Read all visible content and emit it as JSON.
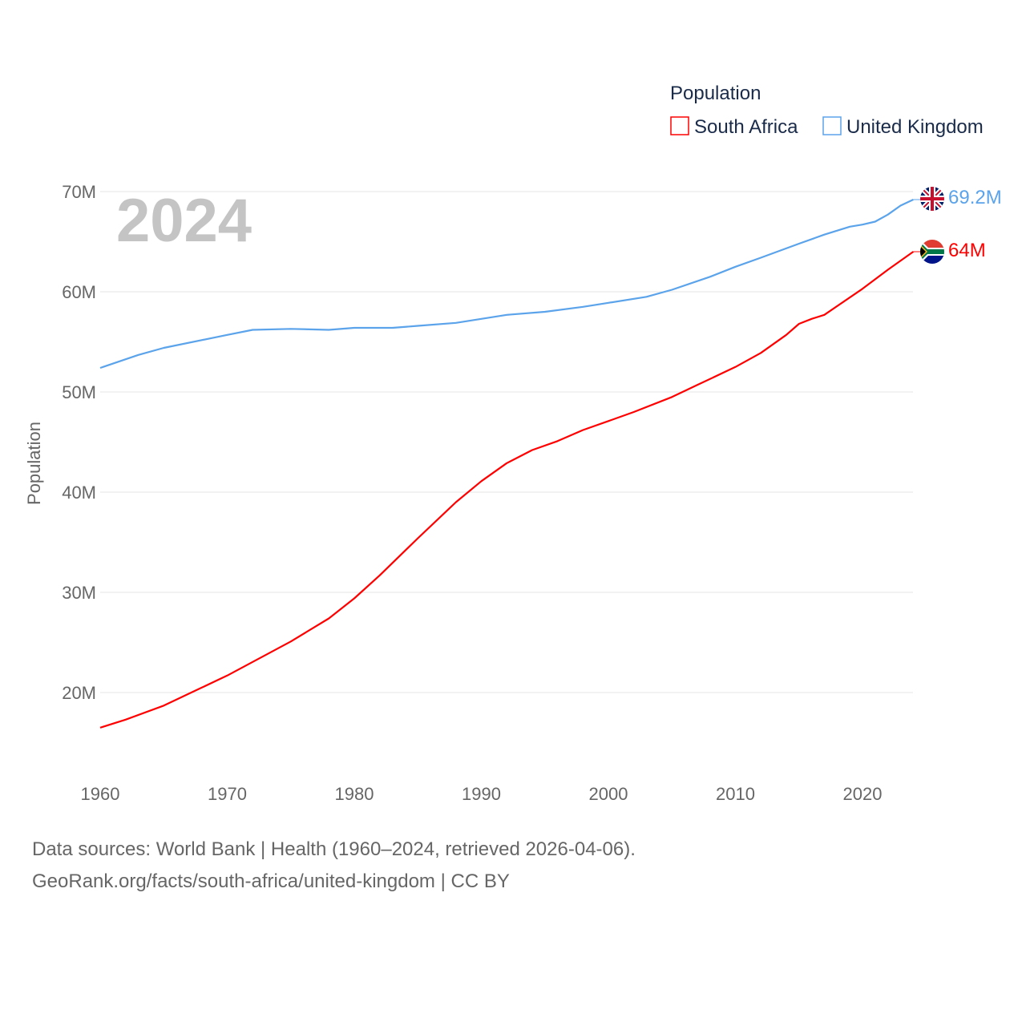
{
  "chart_data": {
    "type": "line",
    "title": "Population",
    "ylabel": "Population",
    "xlabel": "",
    "current_year_label": "2024",
    "xlim": [
      1960,
      2024
    ],
    "ylim": [
      15,
      70
    ],
    "x_ticks": [
      "1960",
      "1970",
      "1980",
      "1990",
      "2000",
      "2010",
      "2020"
    ],
    "y_ticks": [
      "20M",
      "30M",
      "40M",
      "50M",
      "60M",
      "70M"
    ],
    "grid": true,
    "legend_position": "top-right",
    "series": [
      {
        "name": "South Africa",
        "color": "#ff0000",
        "end_label": "64M",
        "flag": "south-africa-flag",
        "points": [
          [
            1960,
            16.5
          ],
          [
            1962,
            17.3
          ],
          [
            1965,
            18.7
          ],
          [
            1968,
            20.5
          ],
          [
            1970,
            21.7
          ],
          [
            1975,
            25.1
          ],
          [
            1978,
            27.4
          ],
          [
            1980,
            29.4
          ],
          [
            1982,
            31.7
          ],
          [
            1985,
            35.4
          ],
          [
            1988,
            39.0
          ],
          [
            1990,
            41.1
          ],
          [
            1992,
            42.9
          ],
          [
            1994,
            44.2
          ],
          [
            1996,
            45.1
          ],
          [
            1998,
            46.2
          ],
          [
            2000,
            47.1
          ],
          [
            2002,
            48.0
          ],
          [
            2005,
            49.5
          ],
          [
            2007,
            50.7
          ],
          [
            2010,
            52.5
          ],
          [
            2012,
            53.9
          ],
          [
            2014,
            55.7
          ],
          [
            2015,
            56.8
          ],
          [
            2016,
            57.3
          ],
          [
            2017,
            57.7
          ],
          [
            2020,
            60.3
          ],
          [
            2022,
            62.2
          ],
          [
            2024,
            64.0
          ]
        ]
      },
      {
        "name": "United Kingdom",
        "color": "#5ba3ea",
        "end_label": "69.2M",
        "flag": "united-kingdom-flag",
        "points": [
          [
            1960,
            52.4
          ],
          [
            1963,
            53.7
          ],
          [
            1965,
            54.4
          ],
          [
            1970,
            55.7
          ],
          [
            1972,
            56.2
          ],
          [
            1975,
            56.3
          ],
          [
            1978,
            56.2
          ],
          [
            1980,
            56.4
          ],
          [
            1983,
            56.4
          ],
          [
            1985,
            56.6
          ],
          [
            1988,
            56.9
          ],
          [
            1990,
            57.3
          ],
          [
            1992,
            57.7
          ],
          [
            1995,
            58.0
          ],
          [
            1998,
            58.5
          ],
          [
            2000,
            58.9
          ],
          [
            2003,
            59.5
          ],
          [
            2005,
            60.2
          ],
          [
            2008,
            61.5
          ],
          [
            2010,
            62.5
          ],
          [
            2012,
            63.4
          ],
          [
            2015,
            64.8
          ],
          [
            2017,
            65.7
          ],
          [
            2019,
            66.5
          ],
          [
            2020,
            66.7
          ],
          [
            2021,
            67.0
          ],
          [
            2022,
            67.7
          ],
          [
            2023,
            68.6
          ],
          [
            2024,
            69.2
          ]
        ]
      }
    ]
  },
  "footer": {
    "sources": "Data sources: World Bank | Health (1960–2024, retrieved 2026-04-06).",
    "credit": "GeoRank.org/facts/south-africa/united-kingdom | CC BY"
  }
}
